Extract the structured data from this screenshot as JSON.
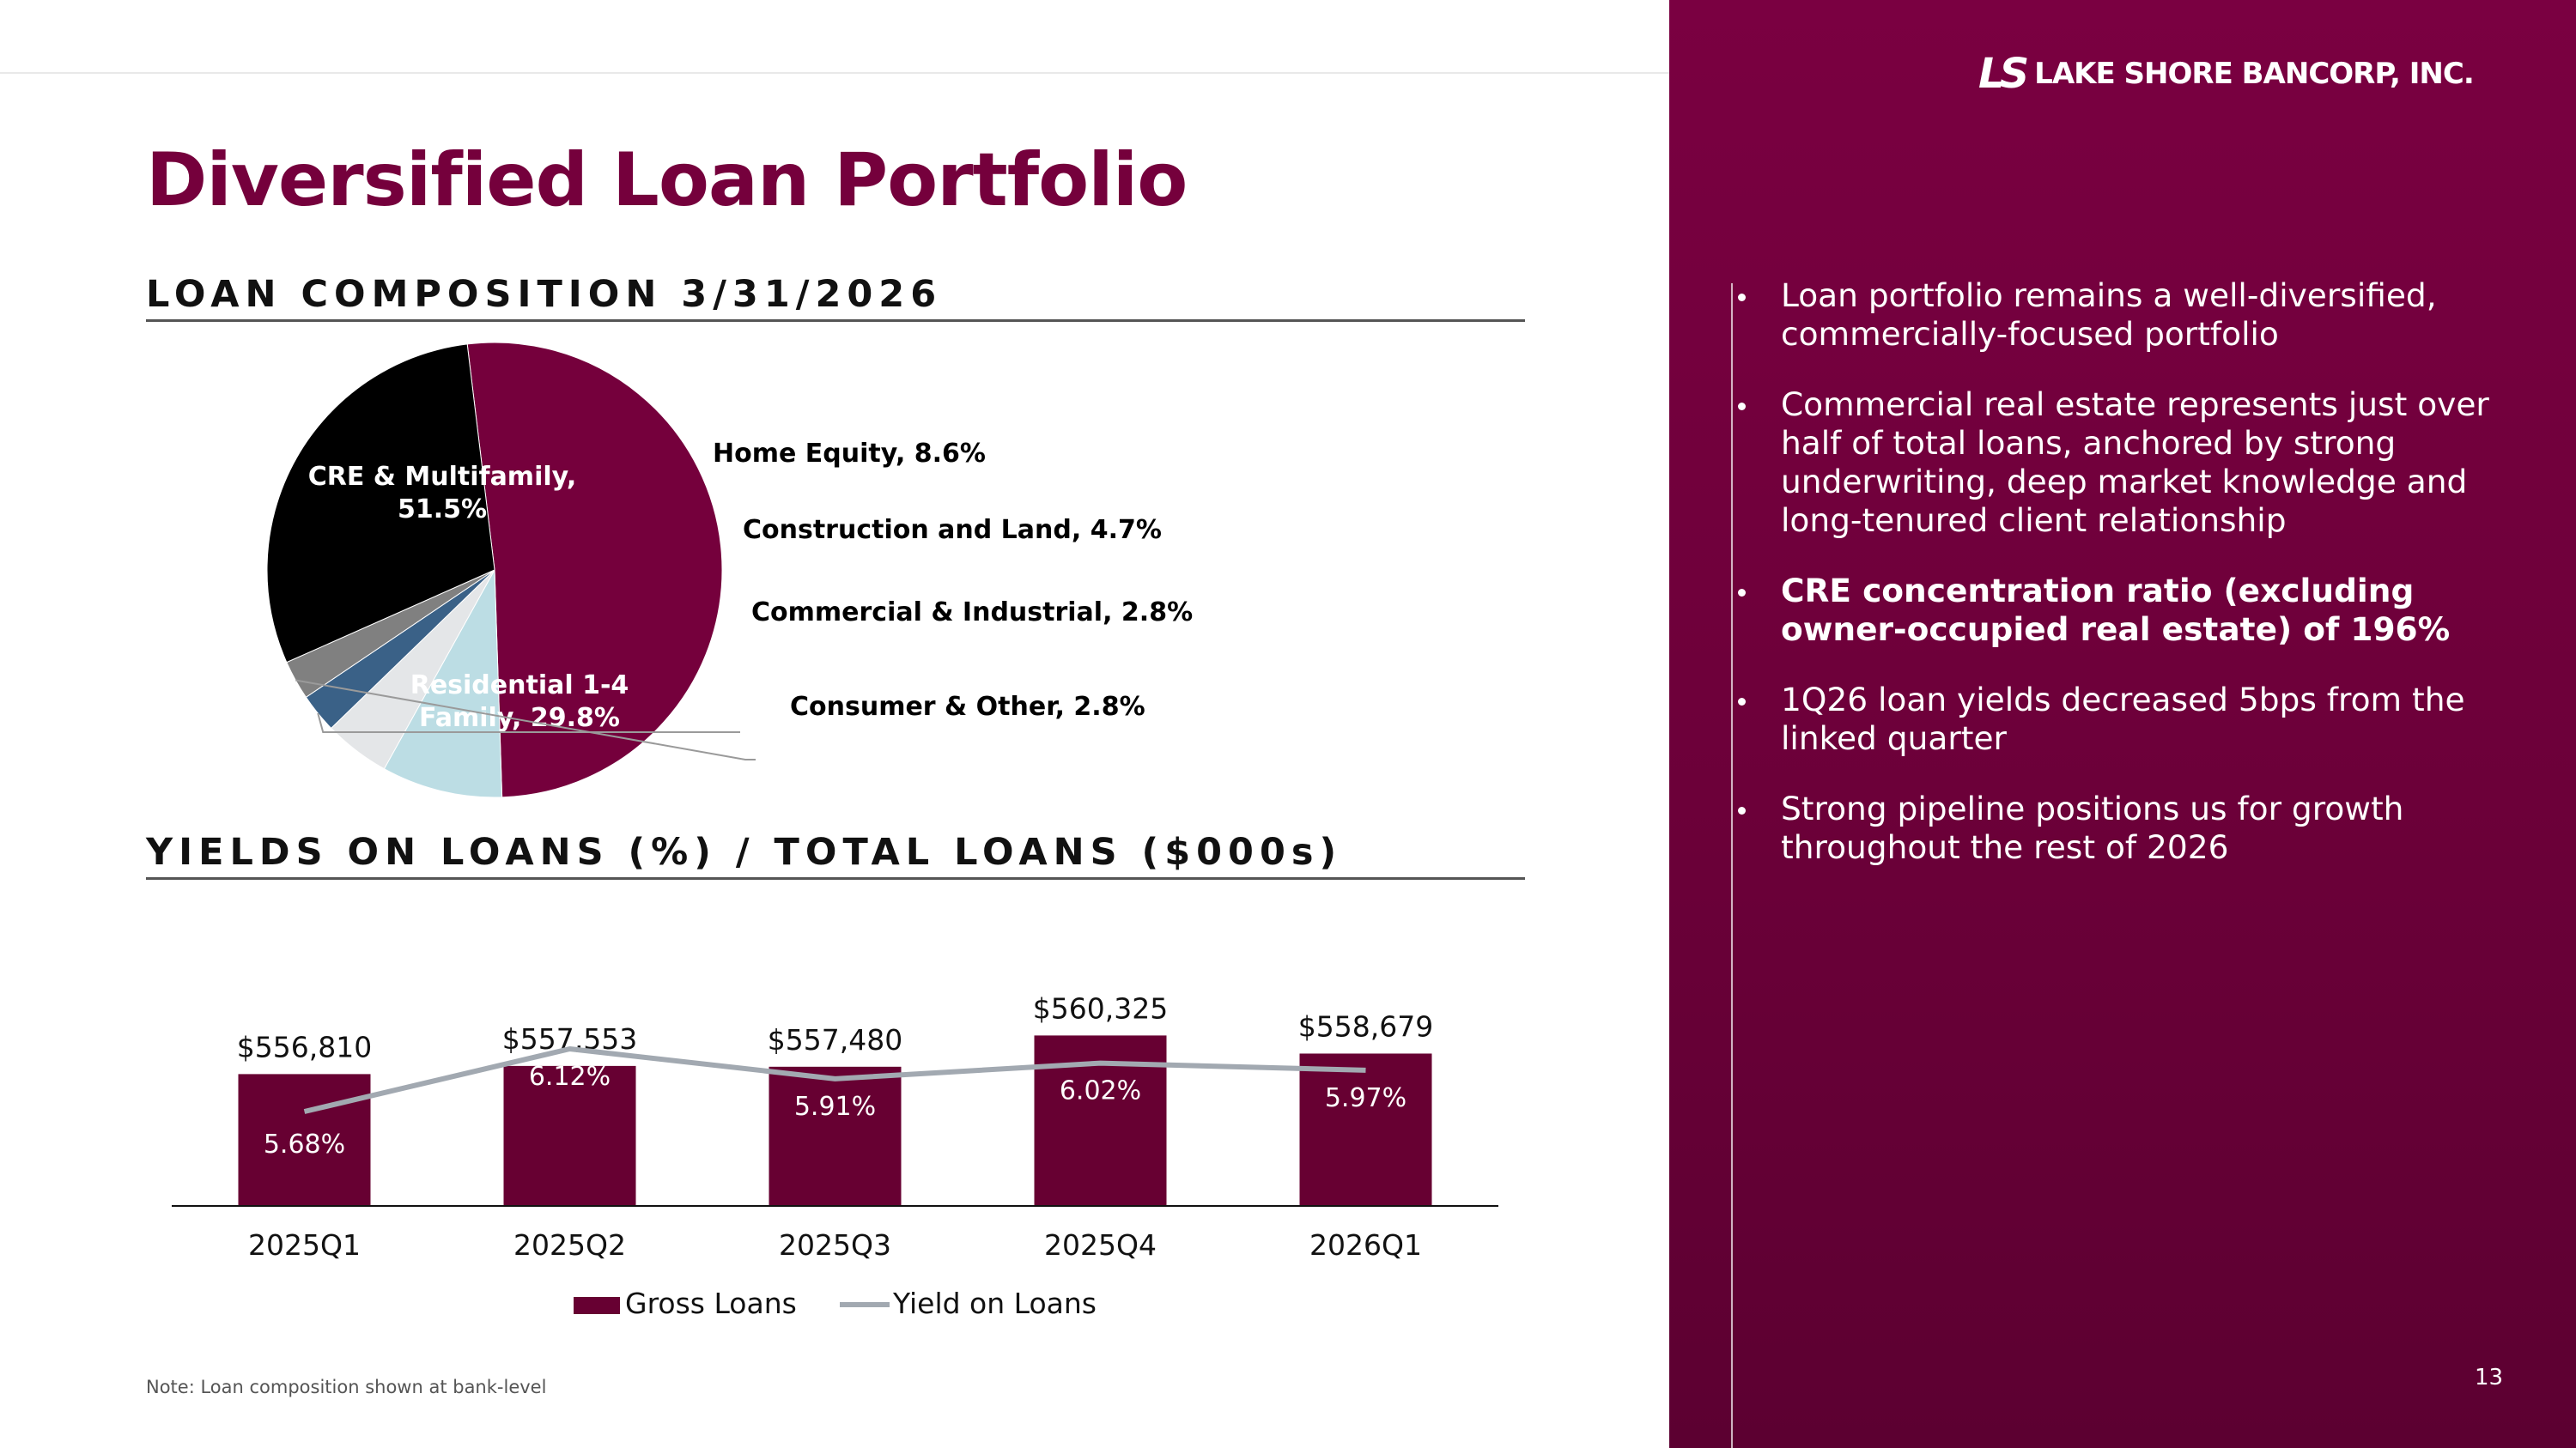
{
  "slide": {
    "title": "Diversified Loan Portfolio",
    "composition_heading": "LOAN COMPOSITION 3/31/2026",
    "yields_heading": "YIELDS ON LOANS (%) / TOTAL LOANS ($000s)",
    "footnote": "Note: Loan composition shown at bank-level",
    "page_number": "13"
  },
  "brand": {
    "mark": "LS",
    "name": "LAKE SHORE BANCORP, INC.",
    "primary_color": "#75003c"
  },
  "sidebar": {
    "bullets": [
      {
        "text": "Loan portfolio remains a well-diversified, commercially-focused portfolio",
        "bold": false
      },
      {
        "text": "Commercial real estate represents just over half of total loans, anchored by strong underwriting, deep market knowledge and long-tenured client relationship",
        "bold": false
      },
      {
        "text": "CRE concentration ratio (excluding owner-occupied real estate) of 196%",
        "bold": true
      },
      {
        "text": "1Q26 loan yields decreased 5bps from the linked quarter",
        "bold": false
      },
      {
        "text": "Strong pipeline positions us for growth throughout the rest of 2026",
        "bold": false
      }
    ]
  },
  "chart_data": [
    {
      "type": "pie",
      "slices": [
        {
          "label": "CRE & Multifamily, 51.5%",
          "value": 51.5,
          "color": "#75003c"
        },
        {
          "label": "Home Equity, 8.6%",
          "value": 8.6,
          "color": "#bcdde4"
        },
        {
          "label": "Construction and Land, 4.7%",
          "value": 4.7,
          "color": "#e4e6e8"
        },
        {
          "label": "Commercial & Industrial, 2.8%",
          "value": 2.8,
          "color": "#3a6187"
        },
        {
          "label": "Consumer & Other, 2.8%",
          "value": 2.8,
          "color": "#808080"
        },
        {
          "label": "Residential 1-4 Family, 29.8%",
          "value": 29.8,
          "color": "#000000"
        }
      ]
    },
    {
      "type": "bar",
      "categories": [
        "2025Q1",
        "2025Q2",
        "2025Q3",
        "2025Q4",
        "2026Q1"
      ],
      "series": [
        {
          "name": "Gross Loans",
          "type": "bar",
          "values": [
            556810,
            557553,
            557480,
            560325,
            558679
          ],
          "labels": [
            "$556,810",
            "$557,553",
            "$557,480",
            "$560,325",
            "$558,679"
          ],
          "color": "#670032"
        },
        {
          "name": "Yield on Loans",
          "type": "line",
          "values": [
            5.68,
            6.12,
            5.91,
            6.02,
            5.97
          ],
          "labels": [
            "5.68%",
            "6.12%",
            "5.91%",
            "6.02%",
            "5.97%"
          ],
          "color": "#a2a9b1"
        }
      ],
      "legend": "bottom",
      "grid": false
    }
  ]
}
